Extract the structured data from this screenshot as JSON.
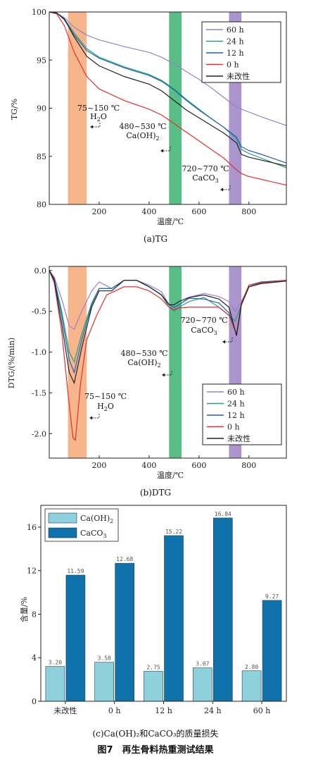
{
  "figure_title": "图7　再生骨料热重测试结果",
  "chart_data": [
    {
      "type": "line",
      "caption": "(a)TG",
      "xlabel": "温度/℃",
      "ylabel": "TG/%",
      "xlim": [
        0,
        950
      ],
      "ylim": [
        80,
        100
      ],
      "xticks": [
        200,
        400,
        600,
        800
      ],
      "yticks": [
        80,
        85,
        90,
        95,
        100
      ],
      "bands": [
        {
          "x0": 75,
          "x1": 150,
          "color": "#f6a878",
          "label": "75~150 ℃",
          "sublabel": "H2O"
        },
        {
          "x0": 480,
          "x1": 530,
          "color": "#3cb371",
          "label": "480~530 ℃",
          "sublabel": "Ca(OH)2"
        },
        {
          "x0": 720,
          "x1": 770,
          "color": "#9b82c4",
          "label": "720~770 ℃",
          "sublabel": "CaCO3"
        }
      ],
      "series": [
        {
          "name": "60 h",
          "color": "#9b7fcc",
          "x": [
            0,
            30,
            60,
            100,
            150,
            200,
            300,
            400,
            450,
            500,
            550,
            600,
            650,
            700,
            750,
            800,
            850,
            950
          ],
          "y": [
            100,
            99.9,
            99.4,
            98.4,
            97.6,
            97.1,
            96.4,
            95.8,
            95.3,
            94.6,
            93.8,
            93.0,
            92.1,
            91.1,
            90.1,
            89.6,
            89.1,
            88.2
          ]
        },
        {
          "name": "24 h",
          "color": "#22a37a",
          "x": [
            0,
            30,
            60,
            100,
            150,
            200,
            300,
            400,
            450,
            500,
            550,
            600,
            650,
            700,
            750,
            770,
            800,
            850,
            950
          ],
          "y": [
            100,
            99.9,
            99.3,
            97.8,
            96.2,
            95.3,
            94.3,
            93.5,
            92.9,
            92.0,
            90.9,
            89.9,
            88.9,
            88.0,
            86.8,
            85.7,
            85.3,
            84.8,
            83.8
          ]
        },
        {
          "name": "12 h",
          "color": "#1f5fb5",
          "x": [
            0,
            30,
            60,
            100,
            150,
            200,
            300,
            400,
            450,
            500,
            550,
            600,
            650,
            700,
            750,
            770,
            800,
            850,
            950
          ],
          "y": [
            100,
            99.9,
            99.2,
            97.6,
            96.0,
            95.2,
            94.2,
            93.4,
            92.8,
            91.9,
            90.8,
            89.8,
            88.9,
            88.0,
            87.0,
            86.0,
            85.6,
            85.2,
            84.3
          ]
        },
        {
          "name": "0 h",
          "color": "#e03030",
          "x": [
            0,
            30,
            60,
            100,
            150,
            200,
            300,
            400,
            450,
            500,
            550,
            600,
            650,
            700,
            750,
            770,
            800,
            850,
            950
          ],
          "y": [
            100,
            99.8,
            98.6,
            95.8,
            93.3,
            92.0,
            90.8,
            89.9,
            89.3,
            88.4,
            87.5,
            86.6,
            85.7,
            84.8,
            83.6,
            83.2,
            82.9,
            82.6,
            82.0
          ]
        },
        {
          "name": "未改性",
          "color": "#222222",
          "x": [
            0,
            30,
            60,
            100,
            150,
            200,
            300,
            400,
            450,
            500,
            550,
            600,
            650,
            700,
            750,
            770,
            800,
            850,
            950
          ],
          "y": [
            100,
            99.9,
            99.3,
            97.4,
            95.4,
            94.4,
            93.3,
            92.5,
            91.8,
            90.8,
            89.8,
            89.0,
            88.2,
            87.4,
            86.4,
            85.2,
            84.9,
            84.6,
            84.0
          ]
        }
      ]
    },
    {
      "type": "line",
      "caption": "(b)DTG",
      "xlabel": "温度/℃",
      "ylabel": "DTG/(%/min)",
      "xlim": [
        0,
        950
      ],
      "ylim": [
        -2.3,
        0.05
      ],
      "xticks": [
        200,
        400,
        600,
        800
      ],
      "yticks": [
        0.0,
        -0.5,
        -1.0,
        -1.5,
        -2.0
      ],
      "ytick_labels": [
        "0.0",
        "-0.5",
        "-1.0",
        "-1.5",
        "-2.0"
      ],
      "bands": [
        {
          "x0": 75,
          "x1": 150,
          "color": "#f6a878",
          "label": "75~150 ℃",
          "sublabel": "H2O"
        },
        {
          "x0": 480,
          "x1": 530,
          "color": "#3cb371",
          "label": "480~530 ℃",
          "sublabel": "Ca(OH)2"
        },
        {
          "x0": 720,
          "x1": 770,
          "color": "#9b82c4",
          "label": "720~770 ℃",
          "sublabel": "CaCO3"
        }
      ],
      "series": [
        {
          "name": "60 h",
          "color": "#9b7fcc",
          "x": [
            0,
            20,
            50,
            80,
            100,
            130,
            170,
            200,
            250,
            300,
            350,
            400,
            450,
            480,
            500,
            520,
            560,
            620,
            680,
            720,
            745,
            770,
            800,
            850,
            950
          ],
          "y": [
            0.0,
            -0.08,
            -0.35,
            -0.68,
            -0.72,
            -0.5,
            -0.25,
            -0.14,
            -0.22,
            -0.12,
            -0.12,
            -0.18,
            -0.26,
            -0.42,
            -0.48,
            -0.42,
            -0.33,
            -0.28,
            -0.32,
            -0.38,
            -0.5,
            -0.38,
            -0.2,
            -0.15,
            -0.13
          ]
        },
        {
          "name": "24 h",
          "color": "#22a37a",
          "x": [
            0,
            20,
            50,
            80,
            100,
            130,
            170,
            200,
            250,
            300,
            350,
            400,
            450,
            480,
            500,
            520,
            560,
            620,
            680,
            720,
            745,
            770,
            800,
            850,
            950
          ],
          "y": [
            0.0,
            -0.1,
            -0.5,
            -1.0,
            -1.12,
            -0.78,
            -0.4,
            -0.22,
            -0.22,
            -0.12,
            -0.12,
            -0.2,
            -0.3,
            -0.45,
            -0.5,
            -0.45,
            -0.38,
            -0.33,
            -0.45,
            -0.55,
            -0.62,
            -0.42,
            -0.2,
            -0.15,
            -0.12
          ]
        },
        {
          "name": "12 h",
          "color": "#1f5fb5",
          "x": [
            0,
            20,
            50,
            80,
            100,
            130,
            170,
            200,
            250,
            300,
            350,
            400,
            450,
            480,
            500,
            520,
            560,
            620,
            680,
            720,
            750,
            770,
            800,
            850,
            950
          ],
          "y": [
            0.0,
            -0.1,
            -0.55,
            -1.1,
            -1.25,
            -0.85,
            -0.42,
            -0.22,
            -0.22,
            -0.12,
            -0.12,
            -0.2,
            -0.3,
            -0.42,
            -0.45,
            -0.42,
            -0.34,
            -0.35,
            -0.4,
            -0.52,
            -0.78,
            -0.4,
            -0.18,
            -0.14,
            -0.12
          ]
        },
        {
          "name": "0 h",
          "color": "#e03030",
          "x": [
            0,
            20,
            50,
            75,
            95,
            105,
            125,
            150,
            190,
            230,
            300,
            350,
            400,
            450,
            480,
            500,
            520,
            560,
            620,
            680,
            720,
            750,
            770,
            800,
            850,
            950
          ],
          "y": [
            0.0,
            -0.15,
            -0.75,
            -1.5,
            -2.05,
            -2.08,
            -1.4,
            -0.85,
            -0.55,
            -0.3,
            -0.2,
            -0.2,
            -0.25,
            -0.35,
            -0.45,
            -0.48,
            -0.46,
            -0.45,
            -0.45,
            -0.45,
            -0.55,
            -0.78,
            -0.4,
            -0.18,
            -0.15,
            -0.12
          ]
        },
        {
          "name": "未改性",
          "color": "#222222",
          "x": [
            0,
            20,
            50,
            80,
            100,
            130,
            170,
            200,
            250,
            300,
            350,
            400,
            450,
            480,
            500,
            520,
            560,
            620,
            680,
            720,
            750,
            770,
            800,
            850,
            950
          ],
          "y": [
            0.0,
            -0.12,
            -0.65,
            -1.25,
            -1.38,
            -0.95,
            -0.45,
            -0.25,
            -0.25,
            -0.12,
            -0.12,
            -0.2,
            -0.3,
            -0.42,
            -0.42,
            -0.38,
            -0.33,
            -0.3,
            -0.35,
            -0.45,
            -0.8,
            -0.42,
            -0.2,
            -0.16,
            -0.13
          ]
        }
      ]
    },
    {
      "type": "bar",
      "caption": "(c)Ca(OH)₂和CaCO₃的质量损失",
      "xlabel": "",
      "ylabel": "含量/%",
      "ylim": [
        0,
        18
      ],
      "yticks": [
        0,
        4,
        8,
        12,
        16
      ],
      "categories": [
        "未改性",
        "0 h",
        "12 h",
        "24 h",
        "60 h"
      ],
      "series": [
        {
          "name": "Ca(OH)₂",
          "color": "#8fd0dd",
          "values": [
            3.2,
            3.58,
            2.75,
            3.07,
            2.8
          ],
          "labels": [
            "3.20",
            "3.58",
            "2.75",
            "3.07",
            "2.80"
          ]
        },
        {
          "name": "CaCO₃",
          "color": "#1072aa",
          "values": [
            11.59,
            12.68,
            15.22,
            16.84,
            9.27
          ],
          "labels": [
            "11.59",
            "12.68",
            "15.22",
            "16.84",
            "9.27"
          ]
        }
      ]
    }
  ]
}
